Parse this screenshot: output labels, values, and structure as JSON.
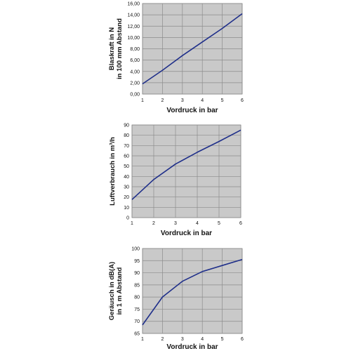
{
  "colors": {
    "plot_bg": "#c9c9c9",
    "grid": "#8c8c8c",
    "line": "#1f2f8a"
  },
  "chart_data": [
    {
      "type": "line",
      "xlabel": "Vordruck in bar",
      "ylabel_lines": [
        "Blaskraft in N",
        "in 100 mm Abstand"
      ],
      "xlim": [
        1,
        6
      ],
      "ylim": [
        0,
        16
      ],
      "xticks": [
        "1",
        "2",
        "3",
        "4",
        "5",
        "6"
      ],
      "yticks": [
        "0,00",
        "2,00",
        "4,00",
        "6,00",
        "8,00",
        "10,00",
        "12,00",
        "14,00",
        "16,00"
      ],
      "grid": true,
      "series": [
        {
          "x": [
            1,
            2,
            3,
            4,
            5,
            6
          ],
          "y": [
            1.8,
            4.2,
            6.8,
            9.2,
            11.6,
            14.2
          ]
        }
      ]
    },
    {
      "type": "line",
      "xlabel": "Vordruck in bar",
      "ylabel_lines": [
        "Luftverbrauch in m³/h"
      ],
      "xlim": [
        1,
        6
      ],
      "ylim": [
        0,
        90
      ],
      "xticks": [
        "1",
        "2",
        "3",
        "4",
        "5",
        "6"
      ],
      "yticks": [
        "0",
        "10",
        "20",
        "30",
        "40",
        "50",
        "60",
        "70",
        "80",
        "90"
      ],
      "grid": true,
      "series": [
        {
          "x": [
            1,
            2,
            3,
            4,
            5,
            6
          ],
          "y": [
            17.5,
            37,
            52,
            63.5,
            74,
            85
          ]
        }
      ]
    },
    {
      "type": "line",
      "xlabel": "Vordruck in bar",
      "ylabel_lines": [
        "Geräusch in dB(A)",
        "in 1 m Abstand"
      ],
      "xlim": [
        1,
        6
      ],
      "ylim": [
        65,
        100
      ],
      "xticks": [
        "1",
        "2",
        "3",
        "4",
        "5",
        "6"
      ],
      "yticks": [
        "65",
        "70",
        "75",
        "80",
        "85",
        "90",
        "95",
        "100"
      ],
      "grid": true,
      "series": [
        {
          "x": [
            1,
            2,
            3,
            4,
            5,
            6
          ],
          "y": [
            68.5,
            80,
            86.5,
            90.5,
            93,
            95.5
          ]
        }
      ]
    }
  ]
}
